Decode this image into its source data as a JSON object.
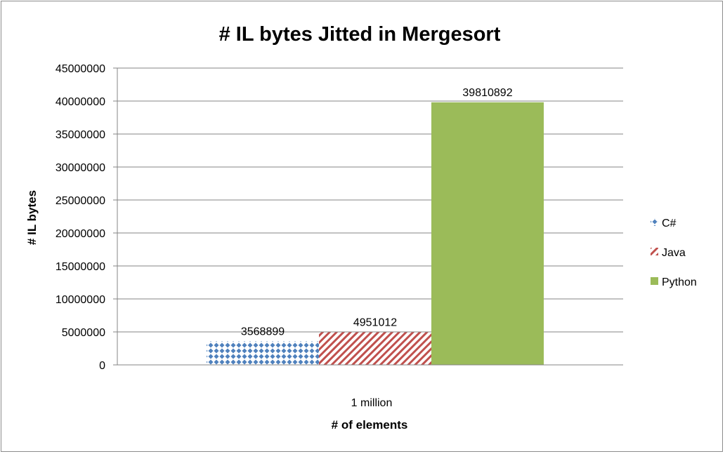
{
  "chart_data": {
    "type": "bar",
    "title": "# IL bytes Jitted in Mergesort",
    "xlabel": "# of elements",
    "ylabel": "# IL bytes",
    "categories": [
      "1 million"
    ],
    "series": [
      {
        "name": "C#",
        "values": [
          3568899
        ],
        "color": "#4f81bd",
        "pattern": "diamond-dots"
      },
      {
        "name": "Java",
        "values": [
          4951012
        ],
        "color": "#c0504d",
        "pattern": "diagonal-stripes"
      },
      {
        "name": "Python",
        "values": [
          39810892
        ],
        "color": "#9bbb59",
        "pattern": "solid"
      }
    ],
    "ylim": [
      0,
      45000000
    ],
    "yticks": [
      "0",
      "5000000",
      "10000000",
      "15000000",
      "20000000",
      "25000000",
      "30000000",
      "35000000",
      "40000000",
      "45000000"
    ],
    "grid": true,
    "legend": "right",
    "data_labels": true
  }
}
